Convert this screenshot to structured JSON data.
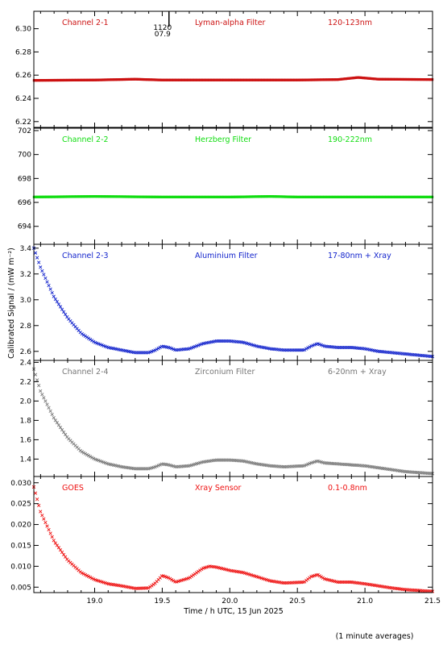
{
  "x_axis_label": "Time / h UTC, 15 Jun 2025",
  "y_axis_label": "Calibrated Signal / (mW m⁻²)",
  "footnote": "(1 minute averages)",
  "marker": {
    "label_top": "1120",
    "label_bottom": "07.9",
    "x": 19.55
  },
  "chart_data": [
    {
      "type": "line",
      "channel": "Channel 2-1",
      "filter": "Lyman-alpha Filter",
      "band": "120-123nm",
      "color": "#cc1111",
      "xlim": [
        18.55,
        21.5
      ],
      "ylim": [
        6.215,
        6.315
      ],
      "yticks": [
        6.22,
        6.24,
        6.26,
        6.28,
        6.3
      ],
      "ytick_labels": [
        "6.22",
        "6.24",
        "6.26",
        "6.28",
        "6.30"
      ],
      "points": [
        [
          18.55,
          6.2555
        ],
        [
          19.0,
          6.2558
        ],
        [
          19.3,
          6.2565
        ],
        [
          19.5,
          6.2558
        ],
        [
          20.0,
          6.2558
        ],
        [
          20.5,
          6.2558
        ],
        [
          20.8,
          6.2562
        ],
        [
          20.95,
          6.258
        ],
        [
          21.1,
          6.2565
        ],
        [
          21.5,
          6.2562
        ]
      ]
    },
    {
      "type": "line",
      "channel": "Channel 2-2",
      "filter": "Herzberg Filter",
      "band": "190-222nm",
      "color": "#11dd11",
      "xlim": [
        18.55,
        21.5
      ],
      "ylim": [
        692.5,
        702.2
      ],
      "yticks": [
        694,
        696,
        698,
        700,
        702
      ],
      "ytick_labels": [
        "694",
        "696",
        "698",
        "700",
        "702"
      ],
      "points": [
        [
          18.55,
          696.45
        ],
        [
          19.0,
          696.5
        ],
        [
          19.5,
          696.45
        ],
        [
          20.0,
          696.45
        ],
        [
          20.3,
          696.5
        ],
        [
          20.5,
          696.45
        ],
        [
          21.0,
          696.45
        ],
        [
          21.5,
          696.45
        ]
      ]
    },
    {
      "type": "scatter",
      "channel": "Channel 2-3",
      "filter": "Aluminium Filter",
      "band": "17-80nm + Xray",
      "color": "#1122cc",
      "xlim": [
        18.55,
        21.5
      ],
      "ylim": [
        2.53,
        3.43
      ],
      "yticks": [
        2.6,
        2.8,
        3.0,
        3.2,
        3.4
      ],
      "ytick_labels": [
        "2.6",
        "2.8",
        "3.0",
        "3.2",
        "3.4"
      ],
      "points": [
        [
          18.55,
          3.4
        ],
        [
          18.6,
          3.25
        ],
        [
          18.7,
          3.02
        ],
        [
          18.8,
          2.86
        ],
        [
          18.9,
          2.74
        ],
        [
          19.0,
          2.67
        ],
        [
          19.1,
          2.63
        ],
        [
          19.2,
          2.61
        ],
        [
          19.3,
          2.59
        ],
        [
          19.4,
          2.59
        ],
        [
          19.45,
          2.61
        ],
        [
          19.5,
          2.64
        ],
        [
          19.55,
          2.63
        ],
        [
          19.6,
          2.61
        ],
        [
          19.7,
          2.62
        ],
        [
          19.8,
          2.66
        ],
        [
          19.9,
          2.68
        ],
        [
          20.0,
          2.68
        ],
        [
          20.1,
          2.67
        ],
        [
          20.2,
          2.64
        ],
        [
          20.3,
          2.62
        ],
        [
          20.4,
          2.61
        ],
        [
          20.55,
          2.61
        ],
        [
          20.6,
          2.64
        ],
        [
          20.65,
          2.66
        ],
        [
          20.7,
          2.64
        ],
        [
          20.8,
          2.63
        ],
        [
          20.9,
          2.63
        ],
        [
          21.0,
          2.62
        ],
        [
          21.1,
          2.6
        ],
        [
          21.2,
          2.59
        ],
        [
          21.3,
          2.58
        ],
        [
          21.4,
          2.57
        ],
        [
          21.5,
          2.56
        ]
      ]
    },
    {
      "type": "scatter",
      "channel": "Channel 2-4",
      "filter": "Zirconium Filter",
      "band": "6-20nm + Xray",
      "color": "#777777",
      "xlim": [
        18.55,
        21.5
      ],
      "ylim": [
        1.22,
        2.42
      ],
      "yticks": [
        1.4,
        1.6,
        1.8,
        2.0,
        2.2,
        2.4
      ],
      "ytick_labels": [
        "1.4",
        "1.6",
        "1.8",
        "2.0",
        "2.2",
        "2.4"
      ],
      "points": [
        [
          18.55,
          2.33
        ],
        [
          18.6,
          2.1
        ],
        [
          18.7,
          1.82
        ],
        [
          18.8,
          1.62
        ],
        [
          18.9,
          1.48
        ],
        [
          19.0,
          1.4
        ],
        [
          19.1,
          1.35
        ],
        [
          19.2,
          1.32
        ],
        [
          19.3,
          1.3
        ],
        [
          19.4,
          1.3
        ],
        [
          19.45,
          1.32
        ],
        [
          19.5,
          1.35
        ],
        [
          19.55,
          1.34
        ],
        [
          19.6,
          1.32
        ],
        [
          19.7,
          1.33
        ],
        [
          19.8,
          1.37
        ],
        [
          19.9,
          1.39
        ],
        [
          20.0,
          1.39
        ],
        [
          20.1,
          1.38
        ],
        [
          20.2,
          1.35
        ],
        [
          20.3,
          1.33
        ],
        [
          20.4,
          1.32
        ],
        [
          20.55,
          1.33
        ],
        [
          20.6,
          1.36
        ],
        [
          20.65,
          1.38
        ],
        [
          20.7,
          1.36
        ],
        [
          20.8,
          1.35
        ],
        [
          20.9,
          1.34
        ],
        [
          21.0,
          1.33
        ],
        [
          21.1,
          1.31
        ],
        [
          21.2,
          1.29
        ],
        [
          21.3,
          1.27
        ],
        [
          21.4,
          1.26
        ],
        [
          21.5,
          1.25
        ]
      ]
    },
    {
      "type": "scatter",
      "channel": "GOES",
      "filter": "Xray Sensor",
      "band": "0.1-0.8nm",
      "color": "#ee1111",
      "xlim": [
        18.55,
        21.5
      ],
      "ylim": [
        0.0037,
        0.0315
      ],
      "yticks": [
        0.005,
        0.01,
        0.015,
        0.02,
        0.025,
        0.03
      ],
      "ytick_labels": [
        "0.005",
        "0.010",
        "0.015",
        "0.020",
        "0.025",
        "0.030"
      ],
      "xticks": [
        19.0,
        19.5,
        20.0,
        20.5,
        21.0,
        21.5
      ],
      "xtick_labels": [
        "19.0",
        "19.5",
        "20.0",
        "20.5",
        "21.0",
        "21.5"
      ],
      "points": [
        [
          18.55,
          0.029
        ],
        [
          18.6,
          0.023
        ],
        [
          18.7,
          0.016
        ],
        [
          18.8,
          0.0115
        ],
        [
          18.9,
          0.0085
        ],
        [
          19.0,
          0.0068
        ],
        [
          19.1,
          0.0058
        ],
        [
          19.2,
          0.0053
        ],
        [
          19.3,
          0.0047
        ],
        [
          19.4,
          0.0048
        ],
        [
          19.45,
          0.006
        ],
        [
          19.5,
          0.0078
        ],
        [
          19.55,
          0.0072
        ],
        [
          19.6,
          0.0062
        ],
        [
          19.7,
          0.0072
        ],
        [
          19.8,
          0.0095
        ],
        [
          19.85,
          0.01
        ],
        [
          19.9,
          0.0098
        ],
        [
          20.0,
          0.009
        ],
        [
          20.1,
          0.0085
        ],
        [
          20.2,
          0.0075
        ],
        [
          20.3,
          0.0065
        ],
        [
          20.4,
          0.006
        ],
        [
          20.55,
          0.0062
        ],
        [
          20.6,
          0.0075
        ],
        [
          20.65,
          0.008
        ],
        [
          20.7,
          0.007
        ],
        [
          20.8,
          0.0062
        ],
        [
          20.9,
          0.0062
        ],
        [
          21.0,
          0.0058
        ],
        [
          21.1,
          0.0053
        ],
        [
          21.2,
          0.0048
        ],
        [
          21.3,
          0.0044
        ],
        [
          21.4,
          0.0042
        ],
        [
          21.5,
          0.004
        ]
      ]
    }
  ]
}
